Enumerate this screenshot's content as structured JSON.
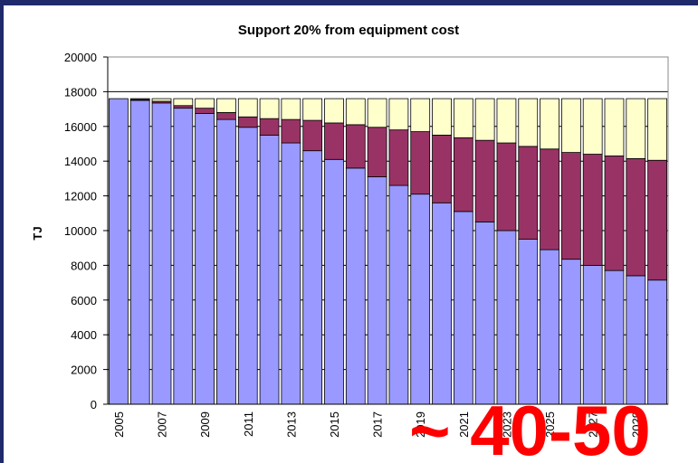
{
  "chart_data": {
    "type": "stacked-bar",
    "title": "Support 20% from equipment cost",
    "y_label": "TJ",
    "annotation": "~ 40-50",
    "categories": [
      "2005",
      null,
      "2007",
      null,
      "2009",
      null,
      "2011",
      null,
      "2013",
      null,
      "2015",
      null,
      "2017",
      null,
      "2019",
      null,
      "2021",
      null,
      "2023",
      null,
      "2025",
      null,
      "2027",
      null,
      "2029",
      null
    ],
    "series": [
      {
        "color": "#9999ff",
        "values": [
          17600,
          17500,
          17350,
          17050,
          16750,
          16400,
          15950,
          15500,
          15050,
          14600,
          14100,
          13600,
          13100,
          12600,
          12100,
          11600,
          11100,
          10500,
          10000,
          9500,
          8900,
          8350,
          8000,
          7700,
          7400,
          7150
        ]
      },
      {
        "color": "#993366",
        "values": [
          0,
          50,
          100,
          150,
          300,
          400,
          600,
          950,
          1350,
          1750,
          2100,
          2500,
          2850,
          3200,
          3600,
          3900,
          4250,
          4700,
          5050,
          5350,
          5800,
          6150,
          6400,
          6600,
          6750,
          6900
        ]
      },
      {
        "color": "#ffffcc",
        "values": [
          0,
          50,
          150,
          400,
          550,
          800,
          1050,
          1150,
          1200,
          1250,
          1400,
          1500,
          1650,
          1800,
          1900,
          2100,
          2250,
          2400,
          2550,
          2750,
          2900,
          3100,
          3200,
          3300,
          3450,
          3550
        ]
      }
    ],
    "ylim": [
      0,
      20000
    ],
    "yticks": [
      0,
      2000,
      4000,
      6000,
      8000,
      10000,
      12000,
      14000,
      16000,
      18000,
      20000
    ],
    "grid": true
  }
}
